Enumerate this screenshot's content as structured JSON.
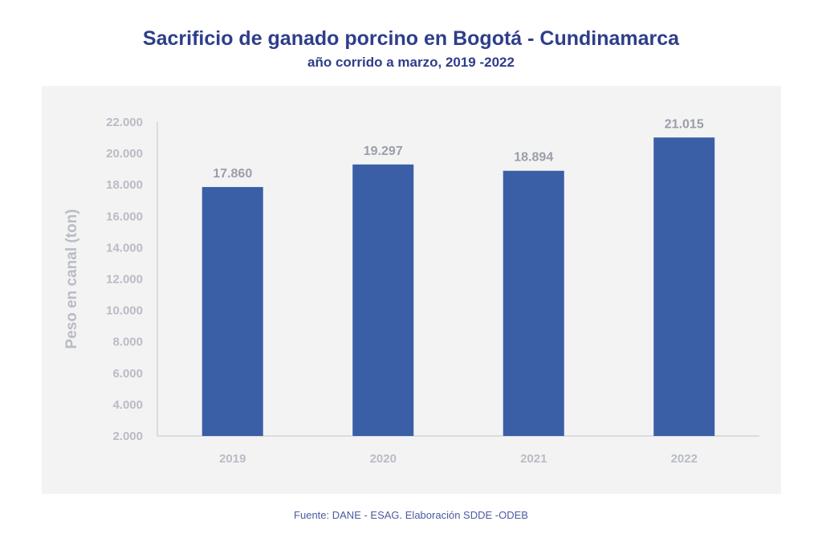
{
  "chart_data": {
    "type": "bar",
    "title": "Sacrificio de ganado porcino en Bogotá - Cundinamarca",
    "subtitle": "año corrido a marzo, 2019 -2022",
    "xlabel": "",
    "ylabel": "Peso en canal (ton)",
    "categories": [
      "2019",
      "2020",
      "2021",
      "2022"
    ],
    "values": [
      17860,
      19297,
      18894,
      21015
    ],
    "data_labels": [
      "17.860",
      "19.297",
      "18.894",
      "21.015"
    ],
    "ylim": [
      2000,
      22000
    ],
    "yticks": [
      2000,
      4000,
      6000,
      8000,
      10000,
      12000,
      14000,
      16000,
      18000,
      20000,
      22000
    ],
    "ytick_labels": [
      "2.000",
      "4.000",
      "6.000",
      "8.000",
      "10.000",
      "12.000",
      "14.000",
      "16.000",
      "18.000",
      "20.000",
      "22.000"
    ],
    "grid": false,
    "legend": "none",
    "colors": {
      "bar": "#3a5fa6",
      "title": "#2e3e8a",
      "axis_text": "#b9bcc4",
      "label_text": "#9a9ea8",
      "background": "#f3f3f4"
    }
  },
  "source": "Fuente: DANE - ESAG. Elaboración SDDE -ODEB"
}
